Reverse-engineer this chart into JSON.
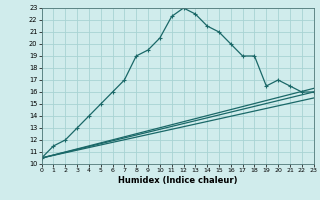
{
  "title": "",
  "xlabel": "Humidex (Indice chaleur)",
  "bg_color": "#d0ecec",
  "grid_color": "#a8d4d4",
  "line_color": "#1a6868",
  "xlim": [
    0,
    23
  ],
  "ylim": [
    10,
    23
  ],
  "xticks": [
    0,
    1,
    2,
    3,
    4,
    5,
    6,
    7,
    8,
    9,
    10,
    11,
    12,
    13,
    14,
    15,
    16,
    17,
    18,
    19,
    20,
    21,
    22,
    23
  ],
  "yticks": [
    10,
    11,
    12,
    13,
    14,
    15,
    16,
    17,
    18,
    19,
    20,
    21,
    22,
    23
  ],
  "main_x": [
    0,
    1,
    2,
    3,
    4,
    5,
    6,
    7,
    8,
    9,
    10,
    11,
    12,
    13,
    14,
    15,
    16,
    17,
    18,
    19,
    20,
    21,
    22,
    23
  ],
  "main_y": [
    10.5,
    11.5,
    12.0,
    13.0,
    14.0,
    15.0,
    16.0,
    17.0,
    19.0,
    19.5,
    20.5,
    22.3,
    23.0,
    22.5,
    21.5,
    21.0,
    20.0,
    19.0,
    19.0,
    16.5,
    17.0,
    16.5,
    16.0,
    16.0
  ],
  "line2_x": [
    0,
    23
  ],
  "line2_y": [
    10.5,
    15.5
  ],
  "line3_x": [
    0,
    23
  ],
  "line3_y": [
    10.5,
    16.0
  ],
  "line4_x": [
    0,
    23
  ],
  "line4_y": [
    10.5,
    16.3
  ]
}
